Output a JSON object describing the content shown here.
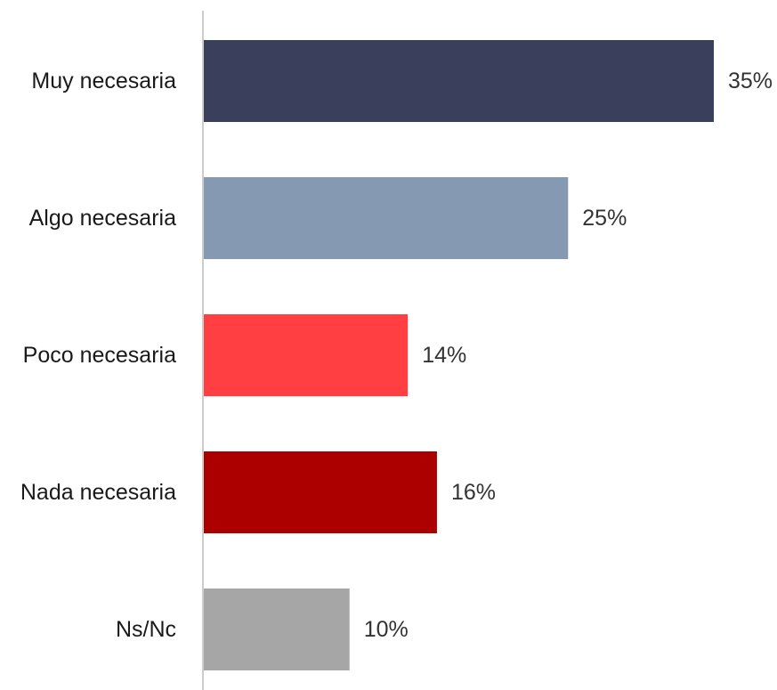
{
  "chart_data": {
    "type": "bar",
    "orientation": "horizontal",
    "categories": [
      "Muy necesaria",
      "Algo necesaria",
      "Poco necesaria",
      "Nada necesaria",
      "Ns/Nc"
    ],
    "values": [
      35,
      25,
      14,
      16,
      10
    ],
    "value_labels": [
      "35%",
      "25%",
      "14%",
      "16%",
      "10%"
    ],
    "colors": [
      "#3a3f5c",
      "#8599b2",
      "#ff3f42",
      "#ac0000",
      "#a6a6a6"
    ],
    "axis_color": "#cccccc",
    "title": "",
    "xlabel": "",
    "ylabel": "",
    "xlim": [
      0,
      35
    ],
    "grid": false,
    "legend": "none"
  }
}
